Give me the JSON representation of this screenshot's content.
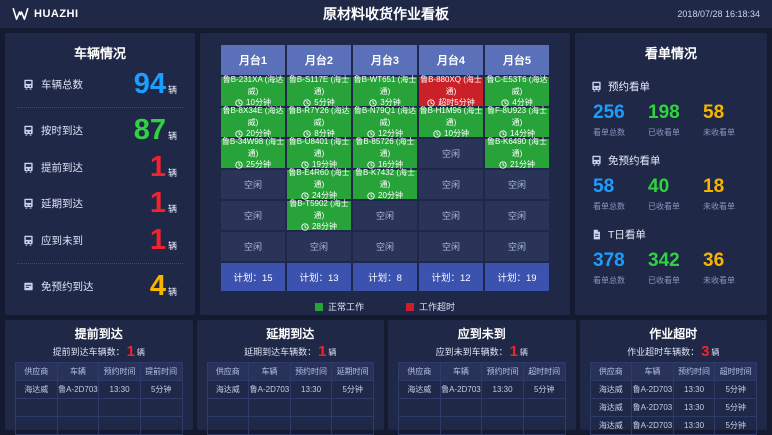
{
  "header": {
    "logo": "HUAZHI",
    "title": "原材料收货作业看板",
    "datetime": "2018/07/28 16:18:34"
  },
  "colors": {
    "blue": "#1c9eff",
    "green": "#2fd33f",
    "red": "#f5222d",
    "yellow": "#f7b500",
    "cell_normal": "#27a339",
    "cell_overtime": "#cb2027",
    "platform_header": "#5a70b8",
    "plan_row": "#3b53ae"
  },
  "vehicle_panel": {
    "title": "车辆情况",
    "unit": "辆",
    "rows": [
      {
        "icon": "bus",
        "label": "车辆总数",
        "value": "94",
        "color": "#1c9eff",
        "divider_after": true
      },
      {
        "icon": "bus",
        "label": "按时到达",
        "value": "87",
        "color": "#2fd33f",
        "divider_after": false
      },
      {
        "icon": "bus",
        "label": "提前到达",
        "value": "1",
        "color": "#f5222d",
        "divider_after": false
      },
      {
        "icon": "bus",
        "label": "延期到达",
        "value": "1",
        "color": "#f5222d",
        "divider_after": false
      },
      {
        "icon": "bus",
        "label": "应到未到",
        "value": "1",
        "color": "#f5222d",
        "divider_after": true
      },
      {
        "icon": "card",
        "label": "免预约到达",
        "value": "4",
        "color": "#f7b500",
        "divider_after": false
      }
    ]
  },
  "platform_panel": {
    "columns": [
      "月台1",
      "月台2",
      "月台3",
      "月台4",
      "月台5"
    ],
    "empty_label": "空闲",
    "plan_prefix": "计划：",
    "plans": [
      "15",
      "13",
      "8",
      "12",
      "19"
    ],
    "rows": [
      [
        {
          "plate": "鲁B-231XA (海达威)",
          "time": "10分钟",
          "status": "normal"
        },
        {
          "plate": "鲁B-S117E (海士通)",
          "time": "5分钟",
          "status": "normal"
        },
        {
          "plate": "鲁B-WT651 (海士通)",
          "time": "3分钟",
          "status": "normal"
        },
        {
          "plate": "鲁B-880XQ (海士通)",
          "time": "超时5分钟",
          "status": "overtime"
        },
        {
          "plate": "鲁C-E53T6 (海达威)",
          "time": "4分钟",
          "status": "normal"
        }
      ],
      [
        {
          "plate": "鲁B-8X34E (海达威)",
          "time": "20分钟",
          "status": "normal"
        },
        {
          "plate": "鲁B-R7Y26 (海达威)",
          "time": "8分钟",
          "status": "normal"
        },
        {
          "plate": "鲁B-N79Q1 (海达威)",
          "time": "12分钟",
          "status": "normal"
        },
        {
          "plate": "鲁B-H1M96 (海士通)",
          "time": "10分钟",
          "status": "normal"
        },
        {
          "plate": "鲁F-8U923 (海士通)",
          "time": "14分钟",
          "status": "normal"
        }
      ],
      [
        {
          "plate": "鲁B-34W98 (海士通)",
          "time": "25分钟",
          "status": "normal"
        },
        {
          "plate": "鲁B-U8401 (海士通)",
          "time": "19分钟",
          "status": "normal"
        },
        {
          "plate": "鲁B-85726 (海士通)",
          "time": "16分钟",
          "status": "normal"
        },
        null,
        {
          "plate": "鲁B-K6490 (海士通)",
          "time": "21分钟",
          "status": "normal"
        }
      ],
      [
        null,
        {
          "plate": "鲁B-E4R60 (海士通)",
          "time": "24分钟",
          "status": "normal"
        },
        {
          "plate": "鲁B-K7432 (海士通)",
          "time": "20分钟",
          "status": "normal"
        },
        null,
        null
      ],
      [
        null,
        {
          "plate": "鲁B-T5902 (海士通)",
          "time": "28分钟",
          "status": "normal"
        },
        null,
        null,
        null
      ],
      [
        null,
        null,
        null,
        null,
        null
      ]
    ],
    "legend": [
      {
        "label": "正常工作",
        "color": "#27a339"
      },
      {
        "label": "工作超时",
        "color": "#cb2027"
      }
    ]
  },
  "order_panel": {
    "title": "看单情况",
    "sections": [
      {
        "icon": "bus",
        "label": "预约看单",
        "stats": [
          {
            "value": "256",
            "label": "看单总数",
            "color": "#1c9eff"
          },
          {
            "value": "198",
            "label": "已收看单",
            "color": "#2fd33f"
          },
          {
            "value": "58",
            "label": "未收看单",
            "color": "#f7b500"
          }
        ]
      },
      {
        "icon": "bus",
        "label": "免预约看单",
        "stats": [
          {
            "value": "58",
            "label": "看单总数",
            "color": "#1c9eff"
          },
          {
            "value": "40",
            "label": "已收看单",
            "color": "#2fd33f"
          },
          {
            "value": "18",
            "label": "未收看单",
            "color": "#f7b500"
          }
        ]
      },
      {
        "icon": "doc",
        "label": "T日看单",
        "stats": [
          {
            "value": "378",
            "label": "看单总数",
            "color": "#1c9eff"
          },
          {
            "value": "342",
            "label": "已收看单",
            "color": "#2fd33f"
          },
          {
            "value": "36",
            "label": "未收看单",
            "color": "#f7b500"
          }
        ]
      }
    ]
  },
  "bottom_panels": [
    {
      "title": "提前到达",
      "subtitle": "提前到达车辆数：",
      "count": "1",
      "unit": "辆",
      "headers": [
        "供应商",
        "车辆",
        "预约时间",
        "提前时间"
      ],
      "rows": [
        [
          "海达威",
          "鲁A-2D703",
          "13:30",
          "5分钟"
        ]
      ],
      "total_rows": 3
    },
    {
      "title": "延期到达",
      "subtitle": "延期到达车辆数：",
      "count": "1",
      "unit": "辆",
      "headers": [
        "供应商",
        "车辆",
        "预约时间",
        "延期时间"
      ],
      "rows": [
        [
          "海达威",
          "鲁A-2D703",
          "13:30",
          "5分钟"
        ]
      ],
      "total_rows": 3
    },
    {
      "title": "应到未到",
      "subtitle": "应到未到车辆数：",
      "count": "1",
      "unit": "辆",
      "headers": [
        "供应商",
        "车辆",
        "预约时间",
        "超时时间"
      ],
      "rows": [
        [
          "海达威",
          "鲁A-2D703",
          "13:30",
          "5分钟"
        ]
      ],
      "total_rows": 3
    },
    {
      "title": "作业超时",
      "subtitle": "作业超时车辆数：",
      "count": "3",
      "unit": "辆",
      "headers": [
        "供应商",
        "车辆",
        "预约时间",
        "超时时间"
      ],
      "rows": [
        [
          "海达威",
          "鲁A-2D703",
          "13:30",
          "5分钟"
        ],
        [
          "海达威",
          "鲁A-2D703",
          "13:30",
          "5分钟"
        ],
        [
          "海达威",
          "鲁A-2D703",
          "13:30",
          "5分钟"
        ]
      ],
      "total_rows": 3
    }
  ]
}
